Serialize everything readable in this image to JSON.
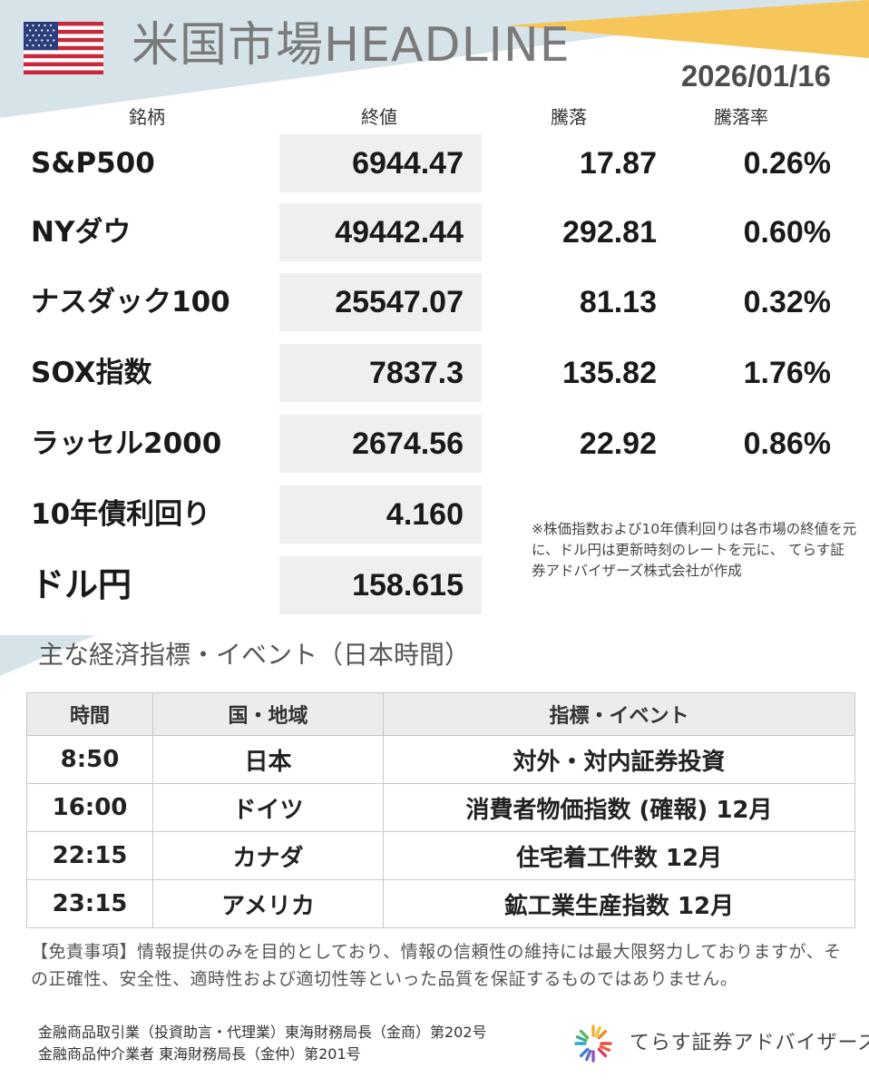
{
  "header": {
    "title": "米国市場HEADLINE",
    "date": "2026/01/16",
    "flag_icon": "us-flag-icon"
  },
  "columns": {
    "name": "銘柄",
    "close": "終値",
    "change": "騰落",
    "change_pct": "騰落率"
  },
  "markets": [
    {
      "name": "S&P500",
      "close": "6944.47",
      "change": "17.87",
      "change_pct": "0.26%"
    },
    {
      "name": "NYダウ",
      "close": "49442.44",
      "change": "292.81",
      "change_pct": "0.60%"
    },
    {
      "name": "ナスダック100",
      "close": "25547.07",
      "change": "81.13",
      "change_pct": "0.32%"
    },
    {
      "name": "SOX指数",
      "close": "7837.3",
      "change": "135.82",
      "change_pct": "1.76%"
    },
    {
      "name": "ラッセル2000",
      "close": "2674.56",
      "change": "22.92",
      "change_pct": "0.86%"
    },
    {
      "name": "10年債利回り",
      "close": "4.160"
    },
    {
      "name": "ドル円",
      "close": "158.615"
    }
  ],
  "note": "※株価指数および10年債利回りは各市場の終値を元に、ドル円は更新時刻のレートを元に、 てらす証券アドバイザーズ株式会社が作成",
  "events": {
    "section_title": "主な経済指標・イベント（日本時間）",
    "headers": {
      "time": "時間",
      "region": "国・地域",
      "event": "指標・イベント"
    },
    "rows": [
      {
        "time": "8:50",
        "region": "日本",
        "event": "対外・対内証券投資"
      },
      {
        "time": "16:00",
        "region": "ドイツ",
        "event": "消費者物価指数 (確報) 12月"
      },
      {
        "time": "22:15",
        "region": "カナダ",
        "event": "住宅着工件数 12月"
      },
      {
        "time": "23:15",
        "region": "アメリカ",
        "event": "鉱工業生産指数 12月"
      }
    ]
  },
  "disclaimer": "【免責事項】情報提供のみを目的としており、情報の信頼性の維持には最大限努力しておりますが、その正確性、安全性、適時性および適切性等といった品質を保証するものではありません。",
  "legal": {
    "line1": "金融商品取引業（投資助言・代理業）東海財務局長（金商）第202号",
    "line2": "金融商品仲介業者 東海財務局長（金仲）第201号"
  },
  "logo": {
    "text": "てらす証券アドバイザーズ",
    "icon": "sunburst-logo-icon"
  },
  "colors": {
    "banner_blue": "#d6e3e8",
    "banner_yellow": "#f6c65a",
    "flag_red": "#c8283a",
    "flag_blue": "#2c3f7c"
  }
}
